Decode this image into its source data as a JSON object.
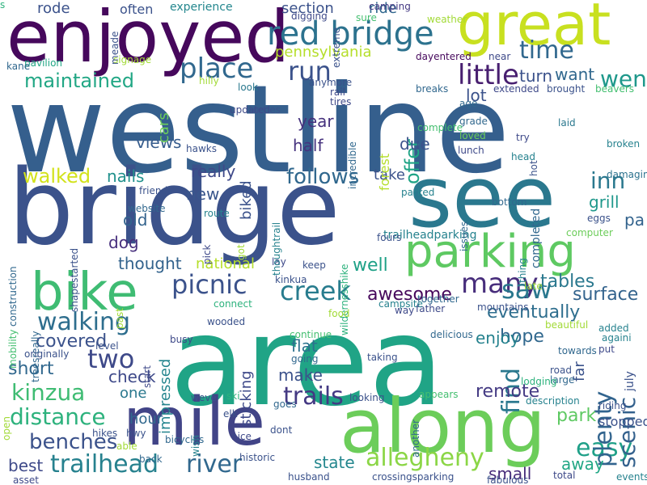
{
  "cloud": {
    "words": [
      {
        "text": "westline",
        "color": "#355f8d"
      },
      {
        "text": "area",
        "color": "#20a486"
      },
      {
        "text": "bridge",
        "color": "#3b528b"
      },
      {
        "text": "see",
        "color": "#2a788e"
      },
      {
        "text": "enjoyed",
        "color": "#46085c"
      },
      {
        "text": "great",
        "color": "#c8e020"
      },
      {
        "text": "along",
        "color": "#6ccd5a"
      },
      {
        "text": "mile",
        "color": "#414487"
      },
      {
        "text": "parking",
        "color": "#5ec962"
      },
      {
        "text": "bike",
        "color": "#3fbc73"
      },
      {
        "text": "red bridge",
        "color": "#2c728e"
      },
      {
        "text": "picnic",
        "color": "#3b528b"
      },
      {
        "text": "creek",
        "color": "#287c8e"
      },
      {
        "text": "kinzua",
        "color": "#3fbc73"
      },
      {
        "text": "trailhead",
        "color": "#26818e"
      },
      {
        "text": "river",
        "color": "#31688e"
      },
      {
        "text": "walking",
        "color": "#2e6e8e"
      },
      {
        "text": "many",
        "color": "#472d7b"
      },
      {
        "text": "allegheny",
        "color": "#8bd646"
      },
      {
        "text": "benches",
        "color": "#3b528b"
      },
      {
        "text": "distance",
        "color": "#2db27d"
      },
      {
        "text": "easy",
        "color": "#1fa088"
      },
      {
        "text": "place",
        "color": "#31688e"
      },
      {
        "text": "run",
        "color": "#3b528b"
      },
      {
        "text": "little",
        "color": "#481f70"
      },
      {
        "text": "two",
        "color": "#3e4989"
      },
      {
        "text": "saw",
        "color": "#2a788e"
      },
      {
        "text": "plenty",
        "color": "#32648e"
      },
      {
        "text": "find",
        "color": "#2a788e"
      },
      {
        "text": "scenic",
        "color": "#34618d"
      },
      {
        "text": "time",
        "color": "#31688e"
      },
      {
        "text": "went",
        "color": "#1f988b"
      },
      {
        "text": "trails",
        "color": "#443983"
      },
      {
        "text": "maintained",
        "color": "#22a785"
      },
      {
        "text": "offer",
        "color": "#20a486"
      },
      {
        "text": "follows",
        "color": "#31688e"
      },
      {
        "text": "inn",
        "color": "#2a788e"
      },
      {
        "text": "walked",
        "color": "#d2e21b"
      },
      {
        "text": "short",
        "color": "#31688e"
      },
      {
        "text": "covered",
        "color": "#3b528b"
      },
      {
        "text": "eventually",
        "color": "#2e6e8e"
      },
      {
        "text": "tables",
        "color": "#2a788e"
      },
      {
        "text": "surface",
        "color": "#33638d"
      },
      {
        "text": "awesome",
        "color": "#46085c"
      },
      {
        "text": "state",
        "color": "#24878e"
      },
      {
        "text": "remote",
        "color": "#443a83"
      },
      {
        "text": "park",
        "color": "#5ec962"
      },
      {
        "text": "away",
        "color": "#22a785"
      },
      {
        "text": "small",
        "color": "#472c7a"
      },
      {
        "text": "best",
        "color": "#3e4989"
      },
      {
        "text": "check",
        "color": "#3e4989"
      },
      {
        "text": "make",
        "color": "#3b528b"
      },
      {
        "text": "hope",
        "color": "#31688e"
      },
      {
        "text": "enjoy",
        "color": "#26828e"
      },
      {
        "text": "flat",
        "color": "#2c728e"
      },
      {
        "text": "well",
        "color": "#1fa187"
      },
      {
        "text": "dog",
        "color": "#472f7d"
      },
      {
        "text": "old",
        "color": "#33638d"
      },
      {
        "text": "views",
        "color": "#365c8d"
      },
      {
        "text": "really",
        "color": "#3e4989"
      },
      {
        "text": "new",
        "color": "#39568c"
      },
      {
        "text": "nails",
        "color": "#21918c"
      },
      {
        "text": "thought",
        "color": "#33638d"
      },
      {
        "text": "national",
        "color": "#b5de2b"
      },
      {
        "text": "year",
        "color": "#46327e"
      },
      {
        "text": "half",
        "color": "#46327e"
      },
      {
        "text": "due",
        "color": "#3b528b"
      },
      {
        "text": "lot",
        "color": "#3b528b"
      },
      {
        "text": "turn",
        "color": "#3b528b"
      },
      {
        "text": "want",
        "color": "#31688e"
      },
      {
        "text": "pennsylvania",
        "color": "#b5de2b"
      },
      {
        "text": "section",
        "color": "#3b528b"
      },
      {
        "text": "ride",
        "color": "#31688e"
      },
      {
        "text": "rode",
        "color": "#3b528b"
      },
      {
        "text": "often",
        "color": "#3b528b"
      },
      {
        "text": "experience",
        "color": "#24878e"
      },
      {
        "text": "hour",
        "color": "#31688e"
      },
      {
        "text": "one",
        "color": "#2a788e"
      },
      {
        "text": "grill",
        "color": "#1f988b"
      },
      {
        "text": "pa",
        "color": "#33638d"
      },
      {
        "text": "take",
        "color": "#3b528b"
      },
      {
        "text": "sticking",
        "color": "#3e4989"
      },
      {
        "text": "biked",
        "color": "#3b528b"
      },
      {
        "text": "cars",
        "color": "#6ccd5a"
      },
      {
        "text": "impressed",
        "color": "#25858e"
      },
      {
        "text": "forest",
        "color": "#b5de2b"
      },
      {
        "text": "far",
        "color": "#3b528b"
      },
      {
        "text": "stopped",
        "color": "#3b528b"
      },
      {
        "text": "trailheadparking",
        "color": "#26828e"
      },
      {
        "text": "digging",
        "color": "#3e4989"
      },
      {
        "text": "sure",
        "color": "#44bf70"
      },
      {
        "text": "camping",
        "color": "#443983"
      },
      {
        "text": "weather",
        "color": "#a2da37"
      },
      {
        "text": "dayentered",
        "color": "#46085c"
      },
      {
        "text": "near",
        "color": "#3e4989"
      },
      {
        "text": "pavilion",
        "color": "#22a785"
      },
      {
        "text": "signage",
        "color": "#a2da37"
      },
      {
        "text": "kane",
        "color": "#31688e"
      },
      {
        "text": "hilly",
        "color": "#a2da37"
      },
      {
        "text": "look",
        "color": "#2a788e"
      },
      {
        "text": "updated",
        "color": "#3e4989"
      },
      {
        "text": "turtles",
        "color": "#3b528b"
      },
      {
        "text": "rail",
        "color": "#3e4989"
      },
      {
        "text": "tires",
        "color": "#3e4989"
      },
      {
        "text": "anymore",
        "color": "#3b528b"
      },
      {
        "text": "breaks",
        "color": "#31688e"
      },
      {
        "text": "age",
        "color": "#31688e"
      },
      {
        "text": "extended",
        "color": "#3e4989"
      },
      {
        "text": "brought",
        "color": "#3b528b"
      },
      {
        "text": "beavers",
        "color": "#44bf70"
      },
      {
        "text": "grade",
        "color": "#31688e"
      },
      {
        "text": "loved",
        "color": "#6ccd5a"
      },
      {
        "text": "complete",
        "color": "#44bf70"
      },
      {
        "text": "laid",
        "color": "#2a788e"
      },
      {
        "text": "try",
        "color": "#3e4989"
      },
      {
        "text": "lunch",
        "color": "#3e4989"
      },
      {
        "text": "head",
        "color": "#26828e"
      },
      {
        "text": "broken",
        "color": "#26828e"
      },
      {
        "text": "damaging",
        "color": "#2c728e"
      },
      {
        "text": "eggs",
        "color": "#3b528b"
      },
      {
        "text": "computer",
        "color": "#6ccd5a"
      },
      {
        "text": "fours",
        "color": "#3b528b"
      },
      {
        "text": "bottom",
        "color": "#31688e"
      },
      {
        "text": "completed",
        "color": "#31688e"
      },
      {
        "text": "thing",
        "color": "#26828e"
      },
      {
        "text": "late",
        "color": "#a2da37"
      },
      {
        "text": "mountains",
        "color": "#3b528b"
      },
      {
        "text": "father",
        "color": "#3e4989"
      },
      {
        "text": "way",
        "color": "#3e4989"
      },
      {
        "text": "together",
        "color": "#31688e"
      },
      {
        "text": "campsite",
        "color": "#26828e"
      },
      {
        "text": "keep",
        "color": "#3b528b"
      },
      {
        "text": "kinkua",
        "color": "#3b528b"
      },
      {
        "text": "hawks",
        "color": "#3b528b"
      },
      {
        "text": "friends",
        "color": "#3b528b"
      },
      {
        "text": "route",
        "color": "#26828e"
      },
      {
        "text": "website",
        "color": "#31688e"
      },
      {
        "text": "pick",
        "color": "#3e4989"
      },
      {
        "text": "got",
        "color": "#a2da37"
      },
      {
        "text": "lay",
        "color": "#3e4989"
      },
      {
        "text": "thoughtrail",
        "color": "#26828e"
      },
      {
        "text": "wildernesshike",
        "color": "#2db27d"
      },
      {
        "text": "issues",
        "color": "#31688e"
      },
      {
        "text": "shapestarted",
        "color": "#3b528b"
      },
      {
        "text": "construction",
        "color": "#31688e"
      },
      {
        "text": "mobility",
        "color": "#44bf70"
      },
      {
        "text": "treesreally",
        "color": "#31688e"
      },
      {
        "text": "past",
        "color": "#a2da37"
      },
      {
        "text": "connect",
        "color": "#2db27d"
      },
      {
        "text": "food",
        "color": "#a2da37"
      },
      {
        "text": "originally",
        "color": "#3b528b"
      },
      {
        "text": "level",
        "color": "#3b528b"
      },
      {
        "text": "continue",
        "color": "#44bf70"
      },
      {
        "text": "delicious",
        "color": "#31688e"
      },
      {
        "text": "going",
        "color": "#31688e"
      },
      {
        "text": "taking",
        "color": "#3b528b"
      },
      {
        "text": "busy",
        "color": "#3e4989"
      },
      {
        "text": "wooded",
        "color": "#3b528b"
      },
      {
        "text": "start",
        "color": "#3e4989"
      },
      {
        "text": "beautiful",
        "color": "#a2da37"
      },
      {
        "text": "towards",
        "color": "#31688e"
      },
      {
        "text": "added",
        "color": "#26828e"
      },
      {
        "text": "againi",
        "color": "#26828e"
      },
      {
        "text": "put",
        "color": "#3e4989"
      },
      {
        "text": "road",
        "color": "#3b528b"
      },
      {
        "text": "large",
        "color": "#31688e"
      },
      {
        "text": "lodging",
        "color": "#2db27d"
      },
      {
        "text": "july",
        "color": "#3b528b"
      },
      {
        "text": "description",
        "color": "#26828e"
      },
      {
        "text": "riding",
        "color": "#3b528b"
      },
      {
        "text": "appears",
        "color": "#44bf70"
      },
      {
        "text": "looking",
        "color": "#3b528b"
      },
      {
        "text": "bicycles",
        "color": "#31688e"
      },
      {
        "text": "ski",
        "color": "#2db27d"
      },
      {
        "text": "weve",
        "color": "#3b528b"
      },
      {
        "text": "elk",
        "color": "#3b528b"
      },
      {
        "text": "goes",
        "color": "#31688e"
      },
      {
        "text": "another",
        "color": "#31688e"
      },
      {
        "text": "hikes",
        "color": "#3b528b"
      },
      {
        "text": "hwy",
        "color": "#3b528b"
      },
      {
        "text": "nice",
        "color": "#3e4989"
      },
      {
        "text": "dont",
        "color": "#3b528b"
      },
      {
        "text": "wish",
        "color": "#26828e"
      },
      {
        "text": "open",
        "color": "#a2da37"
      },
      {
        "text": "able",
        "color": "#a2da37"
      },
      {
        "text": "back",
        "color": "#31688e"
      },
      {
        "text": "historic",
        "color": "#3b528b"
      },
      {
        "text": "husband",
        "color": "#3b528b"
      },
      {
        "text": "crossingsparking",
        "color": "#3b528b"
      },
      {
        "text": "fabulous",
        "color": "#3b528b"
      },
      {
        "text": "total",
        "color": "#3e4989"
      },
      {
        "text": "events",
        "color": "#26828e"
      },
      {
        "text": "asset",
        "color": "#3e4989"
      },
      {
        "text": "incredible",
        "color": "#31688e"
      },
      {
        "text": "extreme",
        "color": "#3b528b"
      },
      {
        "text": "hot",
        "color": "#3b528b"
      },
      {
        "text": "meade",
        "color": "#3b528b"
      },
      {
        "text": "parked",
        "color": "#26828e"
      },
      {
        "text": "s",
        "color": "#2db27d"
      }
    ]
  }
}
